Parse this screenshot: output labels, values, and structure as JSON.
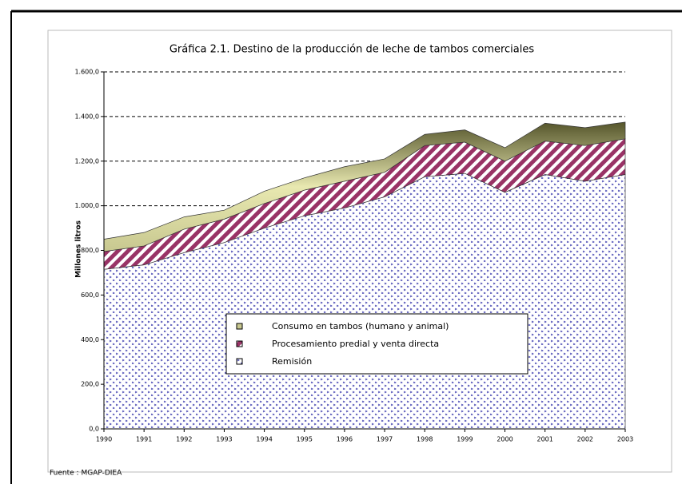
{
  "chart_data": {
    "type": "stacked_area",
    "title": "Gráfica 2.1. Destino de la producción de leche de tambos comerciales",
    "y_label": "Millones litros",
    "source": "Fuente : MGAP-DIEA",
    "categories": [
      "1990",
      "1991",
      "1992",
      "1993",
      "1994",
      "1995",
      "1996",
      "1997",
      "1998",
      "1999",
      "2000",
      "2001",
      "2002",
      "2003"
    ],
    "series": [
      {
        "name": "Remisión",
        "color": "#3333aa",
        "values": [
          715,
          735,
          790,
          835,
          900,
          955,
          990,
          1040,
          1130,
          1145,
          1060,
          1140,
          1110,
          1140
        ]
      },
      {
        "name": "Procesamiento predial y venta directa",
        "color": "#993366",
        "values": [
          80,
          85,
          105,
          105,
          110,
          115,
          120,
          110,
          140,
          140,
          140,
          150,
          160,
          160
        ]
      },
      {
        "name": "Consumo en tambos (humano y animal)",
        "color": "#c8c890",
        "values": [
          55,
          60,
          55,
          40,
          55,
          55,
          65,
          60,
          50,
          55,
          60,
          80,
          80,
          75
        ]
      }
    ],
    "ylim": [
      0,
      1600
    ],
    "yticks": [
      {
        "value": 0,
        "label": "0,0"
      },
      {
        "value": 200,
        "label": "200,0"
      },
      {
        "value": 400,
        "label": "400,0"
      },
      {
        "value": 600,
        "label": "600,0"
      },
      {
        "value": 800,
        "label": "800,0"
      },
      {
        "value": 1000,
        "label": "1.000,0"
      },
      {
        "value": 1200,
        "label": "1.200,0"
      },
      {
        "value": 1400,
        "label": "1.400,0"
      },
      {
        "value": 1600,
        "label": "1.600,0"
      }
    ],
    "grid": true
  }
}
